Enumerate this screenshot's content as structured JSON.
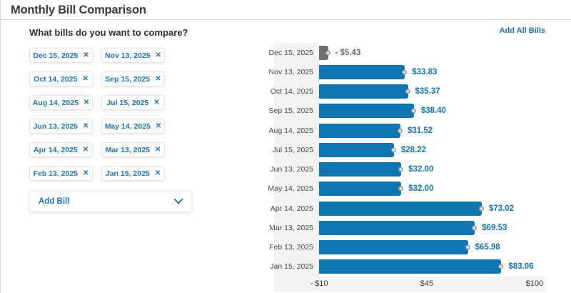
{
  "page": {
    "title": "Monthly Bill Comparison"
  },
  "theme": {
    "accent_blue": "#1b74bd",
    "bar_blue": "#1076b2",
    "bar_gray": "#6e6e6e",
    "value_blue": "#1076b8",
    "panel_gray": "#f2f2f2"
  },
  "bills_panel": {
    "question": "What bills do you want to compare?",
    "remove_icon": "✕",
    "add_bill_label": "Add Bill",
    "chips": [
      {
        "label": "Dec 15, 2025"
      },
      {
        "label": "Nov 13, 2025"
      },
      {
        "label": "Oct 14, 2025"
      },
      {
        "label": "Sep 15, 2025"
      },
      {
        "label": "Aug 14, 2025"
      },
      {
        "label": "Jul 15, 2025"
      },
      {
        "label": "Jun 13, 2025"
      },
      {
        "label": "May 14, 2025"
      },
      {
        "label": "Apr 14, 2025"
      },
      {
        "label": "Mar 13, 2025"
      },
      {
        "label": "Feb 13, 2025"
      },
      {
        "label": "Jan 15, 2025"
      }
    ]
  },
  "chart_panel": {
    "add_all_bills_label": "Add All Bills"
  },
  "chart_data": {
    "type": "bar",
    "orientation": "horizontal",
    "title": "Monthly Bill Comparison",
    "xlabel": "",
    "ylabel": "",
    "xlim": [
      -10,
      105.5
    ],
    "grid": false,
    "categories": [
      "Dec 15, 2025",
      "Nov 13, 2025",
      "Oct 14, 2025",
      "Sep 15, 2025",
      "Aug 14, 2025",
      "Jul 15, 2025",
      "Jun 13, 2025",
      "May 14, 2025",
      "Apr 14, 2025",
      "Mar 13, 2025",
      "Feb 13, 2025",
      "Jan 15, 2025"
    ],
    "values": [
      -5.43,
      33.83,
      35.37,
      38.4,
      31.52,
      28.22,
      32.0,
      32.0,
      73.02,
      69.53,
      65.98,
      83.06
    ],
    "value_labels": [
      "- $5.43",
      "$33.83",
      "$35.37",
      "$38.40",
      "$31.52",
      "$28.22",
      "$32.00",
      "$32.00",
      "$73.02",
      "$69.53",
      "$65.98",
      "$83.06"
    ],
    "xticks": [
      {
        "value": -10,
        "label": "- $10"
      },
      {
        "value": 45,
        "label": "$45"
      },
      {
        "value": 100,
        "label": "$100"
      }
    ]
  }
}
